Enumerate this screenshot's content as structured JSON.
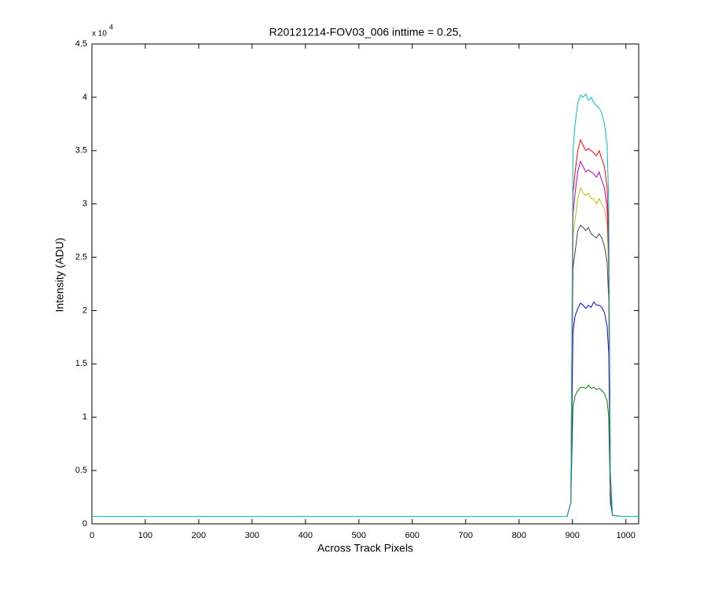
{
  "chart_data": {
    "type": "line",
    "title": "R20121214-FOV03_006 inttime = 0.25,",
    "xlabel": "Across Track Pixels",
    "ylabel": "Intensity (ADU)",
    "y_exponent": {
      "base": "x 10",
      "power": "4"
    },
    "xlim": [
      0,
      1024
    ],
    "xticks": [
      0,
      100,
      200,
      300,
      400,
      500,
      600,
      700,
      800,
      900,
      1000
    ],
    "ylim": [
      0,
      4.5
    ],
    "yticks": [
      0,
      0.5,
      1,
      1.5,
      2,
      2.5,
      3,
      3.5,
      4,
      4.5
    ],
    "grid": false,
    "x": [
      0,
      200,
      400,
      600,
      800,
      890,
      897,
      901,
      905,
      910,
      915,
      920,
      925,
      930,
      935,
      940,
      945,
      950,
      955,
      960,
      965,
      968,
      971,
      975,
      990,
      1024
    ],
    "series": [
      {
        "color": "#00bfbf",
        "values": [
          0.07,
          0.07,
          0.07,
          0.07,
          0.07,
          0.07,
          0.2,
          3.5,
          3.75,
          3.95,
          4.02,
          4.0,
          4.03,
          3.97,
          4.0,
          3.95,
          3.92,
          3.9,
          3.85,
          3.75,
          3.55,
          3.0,
          0.5,
          0.08,
          0.07,
          0.07
        ]
      },
      {
        "color": "#ff0000",
        "values": [
          0.07,
          0.07,
          0.07,
          0.07,
          0.07,
          0.07,
          0.2,
          3.1,
          3.3,
          3.5,
          3.6,
          3.55,
          3.5,
          3.52,
          3.5,
          3.48,
          3.45,
          3.5,
          3.42,
          3.35,
          3.15,
          2.7,
          0.45,
          0.08,
          0.07,
          0.07
        ]
      },
      {
        "color": "#bf00bf",
        "values": [
          0.07,
          0.07,
          0.07,
          0.07,
          0.07,
          0.07,
          0.2,
          2.9,
          3.1,
          3.3,
          3.4,
          3.35,
          3.3,
          3.32,
          3.3,
          3.28,
          3.25,
          3.3,
          3.22,
          3.15,
          2.95,
          2.5,
          0.4,
          0.08,
          0.07,
          0.07
        ]
      },
      {
        "color": "#bfbf00",
        "values": [
          0.07,
          0.07,
          0.07,
          0.07,
          0.07,
          0.07,
          0.2,
          2.7,
          2.85,
          3.05,
          3.15,
          3.1,
          3.08,
          3.1,
          3.05,
          3.05,
          3.0,
          3.05,
          3.0,
          2.95,
          2.8,
          2.35,
          0.35,
          0.08,
          0.07,
          0.07
        ]
      },
      {
        "color": "#404040",
        "values": [
          0.07,
          0.07,
          0.07,
          0.07,
          0.07,
          0.07,
          0.2,
          2.4,
          2.55,
          2.75,
          2.8,
          2.78,
          2.75,
          2.78,
          2.72,
          2.7,
          2.68,
          2.72,
          2.68,
          2.6,
          2.45,
          2.1,
          0.3,
          0.08,
          0.07,
          0.07
        ]
      },
      {
        "color": "#0000ff",
        "values": [
          0.07,
          0.07,
          0.07,
          0.07,
          0.07,
          0.07,
          0.2,
          1.8,
          1.95,
          2.02,
          2.07,
          2.05,
          2.02,
          2.05,
          2.03,
          2.08,
          2.05,
          2.05,
          2.03,
          1.98,
          1.85,
          1.6,
          0.25,
          0.08,
          0.07,
          0.07
        ]
      },
      {
        "color": "#008000",
        "values": [
          0.07,
          0.07,
          0.07,
          0.07,
          0.07,
          0.07,
          0.2,
          1.1,
          1.2,
          1.25,
          1.28,
          1.28,
          1.27,
          1.3,
          1.27,
          1.28,
          1.26,
          1.27,
          1.25,
          1.22,
          1.15,
          1.0,
          0.2,
          0.08,
          0.07,
          0.07
        ]
      }
    ]
  }
}
